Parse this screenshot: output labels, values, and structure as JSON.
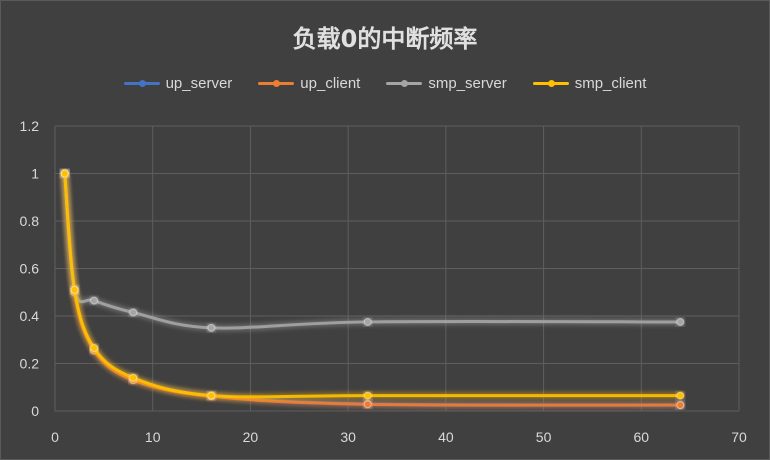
{
  "chart_data": {
    "type": "line",
    "title": "负载0的中断频率",
    "xlabel": "",
    "ylabel": "",
    "xlim": [
      0,
      70
    ],
    "ylim": [
      0,
      1.2
    ],
    "xticks": [
      "0",
      "10",
      "20",
      "30",
      "40",
      "50",
      "60",
      "70"
    ],
    "yticks": [
      "0",
      "0.2",
      "0.4",
      "0.6",
      "0.8",
      "1",
      "1.2"
    ],
    "grid": true,
    "legend_position": "top",
    "x": [
      1,
      2,
      4,
      8,
      16,
      32,
      64
    ],
    "series": [
      {
        "name": "up_server",
        "color": "#4472c4",
        "values": [
          1,
          0.51,
          0.26,
          0.135,
          0.065,
          0.03,
          0.025
        ]
      },
      {
        "name": "up_client",
        "color": "#ed7d31",
        "values": [
          1,
          0.5,
          0.255,
          0.13,
          0.062,
          0.028,
          0.025
        ]
      },
      {
        "name": "smp_server",
        "color": "#a5a5a5",
        "values": [
          1,
          0.51,
          0.465,
          0.415,
          0.35,
          0.375,
          0.375
        ]
      },
      {
        "name": "smp_client",
        "color": "#ffc000",
        "values": [
          1,
          0.51,
          0.265,
          0.14,
          0.065,
          0.065,
          0.065
        ]
      }
    ]
  }
}
